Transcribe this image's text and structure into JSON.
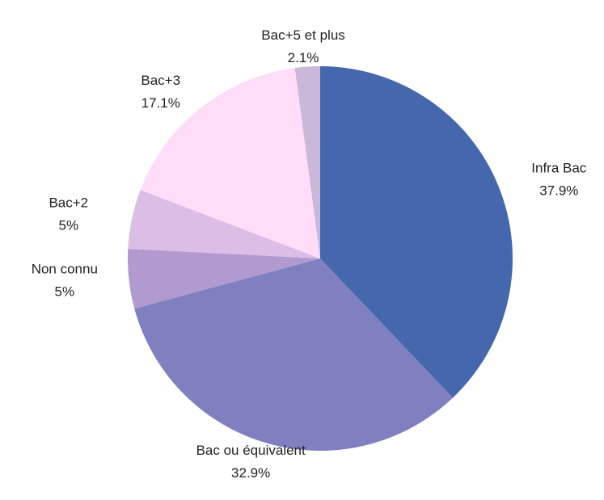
{
  "chart_data": {
    "type": "pie",
    "categories": [
      "Infra Bac",
      "Bac ou équivalent",
      "Non connu",
      "Bac+2",
      "Bac+3",
      "Bac+5 et plus"
    ],
    "values": [
      37.9,
      32.9,
      5,
      5,
      17.1,
      2.1
    ],
    "value_labels": [
      "37.9%",
      "32.9%",
      "5%",
      "5%",
      "17.1%",
      "2.1%"
    ],
    "colors": [
      "#4467ad",
      "#8080c0",
      "#b09ad0",
      "#dbbde6",
      "#ffddf8",
      "#c9b8d8"
    ]
  }
}
